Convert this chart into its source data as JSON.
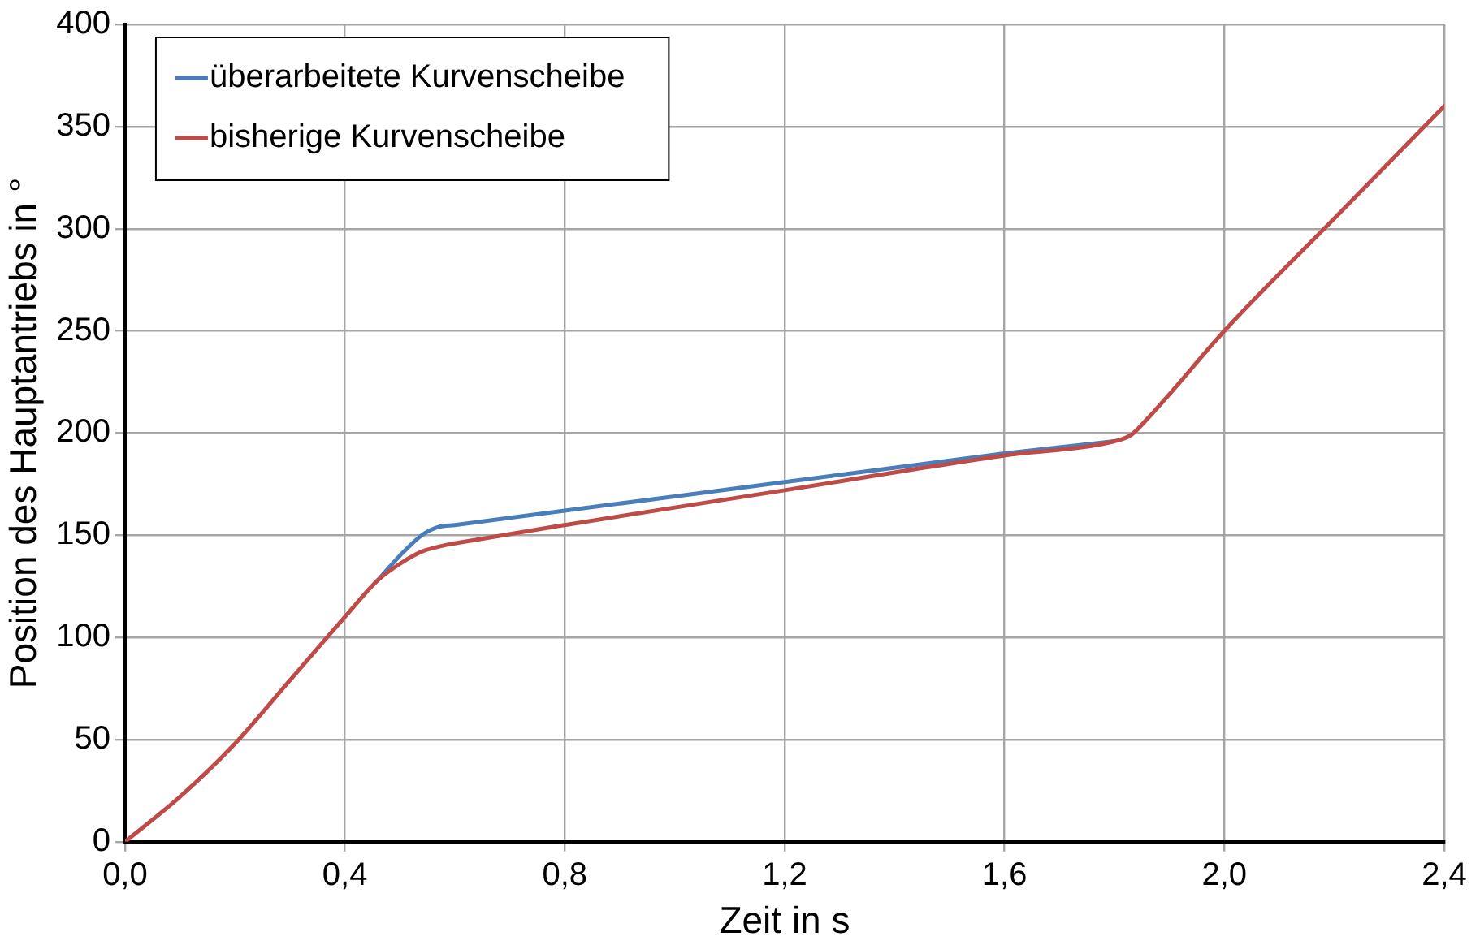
{
  "chart_data": {
    "type": "line",
    "xlabel": "Zeit in s",
    "ylabel": "Position des Hauptantriebs in °",
    "xlim": [
      0,
      2.4
    ],
    "xticks": [
      {
        "value": 0,
        "label": "0,0"
      },
      {
        "value": 0.4,
        "label": "0,4"
      },
      {
        "value": 0.8,
        "label": "0,8"
      },
      {
        "value": 1.2,
        "label": "1,2"
      },
      {
        "value": 1.6,
        "label": "1,6"
      },
      {
        "value": 2.0,
        "label": "2,0"
      },
      {
        "value": 2.4,
        "label": "2,4"
      }
    ],
    "ylim": [
      0,
      400
    ],
    "yticks": [
      0,
      50,
      100,
      150,
      200,
      250,
      300,
      350,
      400
    ],
    "grid": true,
    "legend": "top left",
    "marker": "none",
    "line_style": "solid",
    "series": [
      {
        "name": "überarbeitete Kurvenscheibe",
        "color": "#4a7ebb",
        "x": [
          0.46,
          0.5,
          0.54,
          0.57,
          0.6,
          0.8,
          1.2,
          1.6,
          1.8
        ],
        "values": [
          128,
          140,
          150,
          154,
          155,
          162,
          176,
          190,
          196
        ]
      },
      {
        "name": "bisherige Kurvenscheibe",
        "color": "#be4b48",
        "x": [
          0,
          0.1,
          0.2,
          0.3,
          0.4,
          0.46,
          0.5,
          0.54,
          0.58,
          0.6,
          0.8,
          1.2,
          1.6,
          1.8,
          1.83,
          1.86,
          1.9,
          2.0,
          2.2,
          2.4
        ],
        "values": [
          0,
          22,
          48,
          79,
          110,
          128,
          136,
          142,
          145,
          146,
          155,
          172,
          189,
          196,
          199,
          207,
          219,
          250,
          305,
          360
        ]
      }
    ]
  }
}
